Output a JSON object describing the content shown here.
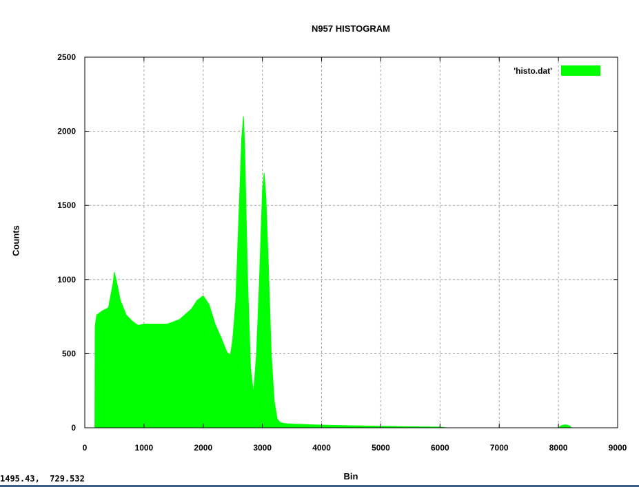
{
  "chart_data": {
    "type": "area",
    "title": "N957 HISTOGRAM",
    "xlabel": "Bin",
    "ylabel": "Counts",
    "xlim": [
      0,
      9000
    ],
    "ylim": [
      0,
      2500
    ],
    "grid": true,
    "legend_position": "top-right",
    "xticks": [
      0,
      1000,
      2000,
      3000,
      4000,
      5000,
      6000,
      7000,
      8000,
      9000
    ],
    "yticks": [
      0,
      500,
      1000,
      1500,
      2000,
      2500
    ],
    "series": [
      {
        "name": "'histo.dat'",
        "color": "#00ff00",
        "x": [
          170,
          175,
          200,
          300,
          400,
          480,
          500,
          550,
          600,
          700,
          800,
          900,
          1000,
          1200,
          1400,
          1600,
          1800,
          1900,
          2000,
          2100,
          2200,
          2300,
          2400,
          2460,
          2500,
          2550,
          2600,
          2650,
          2680,
          2700,
          2750,
          2800,
          2850,
          2900,
          2950,
          3000,
          3030,
          3060,
          3100,
          3150,
          3200,
          3250,
          3300,
          3400,
          3500,
          4000,
          4500,
          5000,
          5500,
          6000,
          6050,
          6100,
          8000,
          8050,
          8100,
          8150,
          8200,
          8210
        ],
        "y": [
          0,
          680,
          760,
          790,
          810,
          980,
          1050,
          960,
          860,
          760,
          720,
          690,
          700,
          700,
          700,
          730,
          800,
          860,
          890,
          830,
          700,
          610,
          510,
          490,
          600,
          850,
          1400,
          1950,
          2100,
          1900,
          1000,
          400,
          230,
          500,
          1000,
          1600,
          1720,
          1550,
          1100,
          500,
          180,
          60,
          35,
          28,
          25,
          18,
          14,
          10,
          7,
          5,
          3,
          0,
          0,
          15,
          20,
          18,
          10,
          0
        ]
      }
    ]
  },
  "status_bar": {
    "coordinates": "1495.43,  729.532"
  }
}
